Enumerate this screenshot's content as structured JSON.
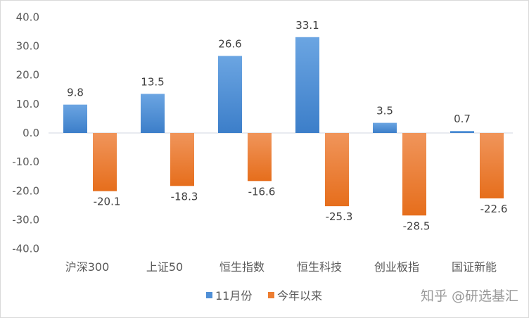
{
  "chart_data": {
    "type": "bar",
    "categories": [
      "沪深300",
      "上证50",
      "恒生指数",
      "恒生科技",
      "创业板指",
      "国证新能"
    ],
    "series": [
      {
        "name": "11月份",
        "values": [
          9.8,
          13.5,
          26.6,
          33.1,
          3.5,
          0.7
        ],
        "color": "#4f8fd6"
      },
      {
        "name": "今年以来",
        "values": [
          -20.1,
          -18.3,
          -16.6,
          -25.3,
          -28.5,
          -22.6
        ],
        "color": "#ed7d31"
      }
    ],
    "ylim": [
      -40,
      40
    ],
    "yticks": [
      "40.0",
      "30.0",
      "20.0",
      "10.0",
      "0.0",
      "-10.0",
      "-20.0",
      "-30.0",
      "-40.0"
    ],
    "title": "",
    "xlabel": "",
    "ylabel": "",
    "grid": false,
    "legend": "bottom"
  },
  "watermark": "知乎 @研选基汇"
}
